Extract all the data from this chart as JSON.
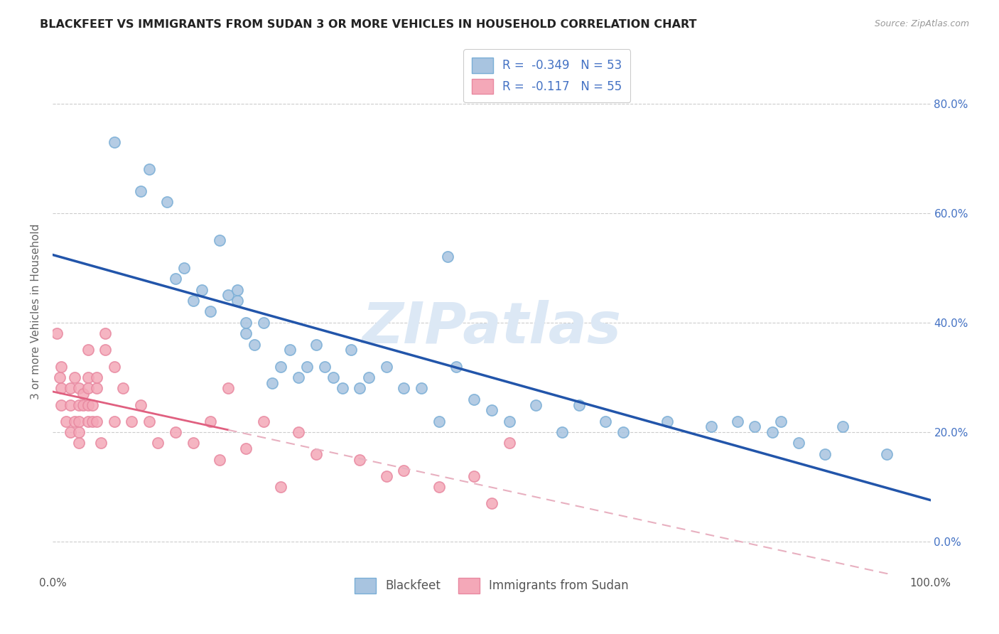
{
  "title": "BLACKFEET VS IMMIGRANTS FROM SUDAN 3 OR MORE VEHICLES IN HOUSEHOLD CORRELATION CHART",
  "source": "Source: ZipAtlas.com",
  "ylabel": "3 or more Vehicles in Household",
  "legend_label1": "Blackfeet",
  "legend_label2": "Immigrants from Sudan",
  "R1": -0.349,
  "N1": 53,
  "R2": -0.117,
  "N2": 55,
  "blue_color": "#a8c4e0",
  "blue_edge_color": "#7aaed6",
  "pink_color": "#f4a8b8",
  "pink_edge_color": "#e888a0",
  "line_blue": "#2255aa",
  "line_pink": "#e06080",
  "line_pink_dash": "#e8b0c0",
  "watermark_color": "#dce8f5",
  "background_color": "#ffffff",
  "grid_color": "#cccccc",
  "right_tick_color": "#4472c4",
  "title_color": "#222222",
  "source_color": "#999999",
  "ylabel_color": "#666666",
  "blue_scatter_x": [
    0.07,
    0.1,
    0.11,
    0.13,
    0.14,
    0.15,
    0.16,
    0.17,
    0.18,
    0.19,
    0.2,
    0.21,
    0.21,
    0.22,
    0.22,
    0.23,
    0.24,
    0.25,
    0.26,
    0.27,
    0.28,
    0.29,
    0.3,
    0.31,
    0.32,
    0.33,
    0.34,
    0.35,
    0.36,
    0.38,
    0.4,
    0.42,
    0.44,
    0.45,
    0.46,
    0.48,
    0.5,
    0.52,
    0.55,
    0.58,
    0.6,
    0.63,
    0.65,
    0.7,
    0.75,
    0.78,
    0.8,
    0.82,
    0.83,
    0.85,
    0.88,
    0.9,
    0.95
  ],
  "blue_scatter_y": [
    0.73,
    0.64,
    0.68,
    0.62,
    0.48,
    0.5,
    0.44,
    0.46,
    0.42,
    0.55,
    0.45,
    0.44,
    0.46,
    0.38,
    0.4,
    0.36,
    0.4,
    0.29,
    0.32,
    0.35,
    0.3,
    0.32,
    0.36,
    0.32,
    0.3,
    0.28,
    0.35,
    0.28,
    0.3,
    0.32,
    0.28,
    0.28,
    0.22,
    0.52,
    0.32,
    0.26,
    0.24,
    0.22,
    0.25,
    0.2,
    0.25,
    0.22,
    0.2,
    0.22,
    0.21,
    0.22,
    0.21,
    0.2,
    0.22,
    0.18,
    0.16,
    0.21,
    0.16
  ],
  "pink_scatter_x": [
    0.005,
    0.008,
    0.01,
    0.01,
    0.01,
    0.015,
    0.02,
    0.02,
    0.02,
    0.025,
    0.025,
    0.03,
    0.03,
    0.03,
    0.03,
    0.03,
    0.035,
    0.035,
    0.04,
    0.04,
    0.04,
    0.04,
    0.04,
    0.045,
    0.045,
    0.05,
    0.05,
    0.05,
    0.055,
    0.06,
    0.06,
    0.07,
    0.07,
    0.08,
    0.09,
    0.1,
    0.11,
    0.12,
    0.14,
    0.16,
    0.18,
    0.19,
    0.2,
    0.22,
    0.24,
    0.26,
    0.28,
    0.3,
    0.35,
    0.38,
    0.4,
    0.44,
    0.48,
    0.5,
    0.52
  ],
  "pink_scatter_y": [
    0.38,
    0.3,
    0.25,
    0.28,
    0.32,
    0.22,
    0.25,
    0.28,
    0.2,
    0.22,
    0.3,
    0.25,
    0.28,
    0.18,
    0.22,
    0.2,
    0.27,
    0.25,
    0.3,
    0.25,
    0.22,
    0.28,
    0.35,
    0.25,
    0.22,
    0.28,
    0.3,
    0.22,
    0.18,
    0.38,
    0.35,
    0.32,
    0.22,
    0.28,
    0.22,
    0.25,
    0.22,
    0.18,
    0.2,
    0.18,
    0.22,
    0.15,
    0.28,
    0.17,
    0.22,
    0.1,
    0.2,
    0.16,
    0.15,
    0.12,
    0.13,
    0.1,
    0.12,
    0.07,
    0.18
  ],
  "xlim": [
    0.0,
    1.0
  ],
  "ylim": [
    -0.06,
    0.9
  ],
  "x_ticks": [
    0.0,
    0.2,
    0.4,
    0.6,
    0.8,
    1.0
  ],
  "y_ticks": [
    0.0,
    0.2,
    0.4,
    0.6,
    0.8
  ],
  "scatter_size": 120,
  "scatter_linewidth": 1.2
}
